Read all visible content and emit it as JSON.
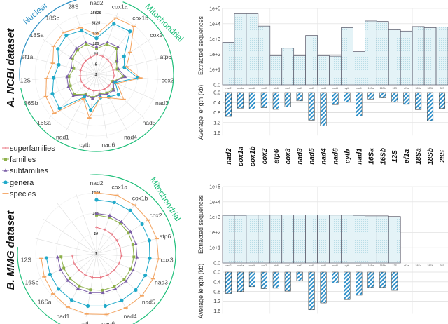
{
  "legend": [
    {
      "name": "superfamilies",
      "color": "#e8737f",
      "marker": "plus"
    },
    {
      "name": "families",
      "color": "#8db04a",
      "marker": "square"
    },
    {
      "name": "subfamilies",
      "color": "#7b5ea7",
      "marker": "triangle"
    },
    {
      "name": "genera",
      "color": "#1fa9c9",
      "marker": "circle"
    },
    {
      "name": "species",
      "color": "#f4a460",
      "marker": "dash"
    }
  ],
  "panels": [
    {
      "title": "A.   NCBI dataset",
      "nuclear_label": "Nuclear",
      "mito_label": "Mitochondrial",
      "nuclear_color": "#2a8fc4",
      "mito_color": "#1fbf7a"
    },
    {
      "title": "B.   MMG dataset",
      "mito_label": "Mitochondrial",
      "mito_color": "#1fbf7a"
    }
  ],
  "chart_data": [
    {
      "type": "radar",
      "scale": "log",
      "log_base": 5,
      "axes": [
        "nad2",
        "cox1a",
        "cox1b",
        "cox2",
        "atp6",
        "cox3",
        "nad3",
        "nad5",
        "nad4",
        "nad6",
        "cytb",
        "nad1",
        "16Sa",
        "16Sb",
        "12S",
        "ef1a",
        "18Sa",
        "18Sb",
        "28S"
      ],
      "ticks": [
        "1",
        "5",
        "25",
        "125",
        "625",
        "3125",
        "15625"
      ],
      "range": [
        1,
        15625
      ],
      "series": [
        {
          "name": "superfamilies",
          "values": [
            22,
            20,
            18,
            16,
            15,
            16,
            15,
            14,
            14,
            13,
            14,
            13,
            14,
            14,
            13,
            13,
            14,
            15,
            17
          ]
        },
        {
          "name": "families",
          "values": [
            56,
            147,
            172,
            40,
            28,
            66,
            16,
            34,
            28,
            22,
            40,
            34,
            106,
            90,
            77,
            40,
            90,
            125,
            147
          ]
        },
        {
          "name": "subfamilies",
          "values": [
            77,
            202,
            237,
            47,
            34,
            90,
            18,
            40,
            34,
            25,
            47,
            40,
            147,
            125,
            106,
            56,
            125,
            172,
            202
          ]
        },
        {
          "name": "genera",
          "values": [
            280,
            4300,
            5000,
            172,
            90,
            625,
            25,
            106,
            56,
            40,
            280,
            56,
            2650,
            1900,
            860,
            450,
            1400,
            2250,
            1400
          ]
        },
        {
          "name": "species",
          "values": [
            530,
            11300,
            13300,
            530,
            125,
            1000,
            34,
            327,
            66,
            40,
            1000,
            77,
            8200,
            5900,
            2650,
            1180,
            3125,
            4300,
            2250
          ]
        }
      ]
    },
    {
      "type": "radar",
      "scale": "log",
      "log_base": 10,
      "axes": [
        "nad2",
        "cox1a",
        "cox1b",
        "cox2",
        "atp6",
        "cox3",
        "nad3",
        "nad5",
        "nad4",
        "nad6",
        "cytb",
        "nad1",
        "16Sa",
        "16Sb",
        "12S",
        "",
        "",
        "",
        ""
      ],
      "ticks": [
        "1",
        "10",
        "100",
        "1000"
      ],
      "range": [
        1,
        1000
      ],
      "series": [
        {
          "name": "superfamilies",
          "values": [
            20,
            18,
            17,
            16,
            16,
            17,
            16,
            15,
            15,
            15,
            15,
            15,
            15,
            16,
            16
          ]
        },
        {
          "name": "families",
          "values": [
            80,
            80,
            80,
            75,
            70,
            70,
            70,
            70,
            68,
            65,
            62,
            62,
            60,
            58,
            57
          ]
        },
        {
          "name": "subfamilies",
          "values": [
            96,
            100,
            100,
            100,
            100,
            100,
            95,
            95,
            90,
            85,
            85,
            85,
            85,
            85,
            84
          ]
        },
        {
          "name": "genera",
          "values": [
            450,
            480,
            500,
            480,
            480,
            425,
            420,
            420,
            400,
            400,
            400,
            380,
            350,
            320,
            300
          ]
        },
        {
          "name": "species",
          "values": [
            1000,
            1100,
            1100,
            1100,
            1150,
            1150,
            1100,
            1100,
            1050,
            1050,
            1000,
            950,
            800,
            650,
            540
          ]
        }
      ]
    },
    {
      "type": "bar",
      "dataset": "NCBI",
      "categories": [
        "nad2",
        "cox1a",
        "cox1b",
        "cox2",
        "atp6",
        "cox3",
        "nad3",
        "nad5",
        "nad4",
        "nad6",
        "cytb",
        "nad1",
        "16Sa",
        "16Sb",
        "12S",
        "ef1a",
        "18Sa",
        "18Sb",
        "28S"
      ],
      "gene_labels": [
        "nad2",
        "cox1a",
        "cox1b",
        "cox2",
        "atp6",
        "cox3",
        "nad3",
        "nad5",
        "nad4",
        "nad6",
        "cytb",
        "nad1",
        "16Sa",
        "16Sb",
        "12S",
        "ef1a",
        "18Sa",
        "18Sb",
        "28S"
      ],
      "top": {
        "ylabel": "Extracted sequences",
        "scale": "log",
        "ticks": [
          "1e+5",
          "1e+4",
          "1e+3",
          "1e+2",
          "1e+1",
          "0.0"
        ],
        "values": [
          600,
          45000,
          45000,
          7000,
          80,
          250,
          80,
          1700,
          80,
          75,
          5500,
          150,
          15000,
          14000,
          4000,
          3300,
          6500,
          5500,
          6000
        ]
      },
      "bottom": {
        "ylabel": "Average length (kb)",
        "ticks": [
          "0.0",
          "0.4",
          "0.8",
          "1.2",
          "1.6"
        ],
        "ylim": [
          0,
          1.6
        ],
        "values": [
          0.95,
          0.62,
          0.65,
          0.6,
          0.67,
          0.57,
          0.33,
          1.1,
          1.33,
          0.48,
          0.38,
          0.94,
          0.26,
          0.21,
          0.37,
          0.47,
          0.68,
          1.12,
          0.63
        ]
      }
    },
    {
      "type": "bar",
      "dataset": "MMG",
      "categories": [
        "nad2",
        "cox1a",
        "cox1b",
        "cox2",
        "atp6",
        "cox3",
        "nad3",
        "nad5",
        "nad4",
        "nad6",
        "cytb",
        "nad1",
        "16Sa",
        "16Sb",
        "12S",
        "ef1a",
        "18Sa",
        "18Sb",
        "28S"
      ],
      "top": {
        "ylabel": "Extracted sequences",
        "scale": "log",
        "ticks": [
          "1e+5",
          "1e+4",
          "1e+3",
          "1e+2",
          "1e+1",
          "0.0"
        ],
        "values": [
          1300,
          1300,
          1350,
          1350,
          1350,
          1400,
          1400,
          1400,
          1400,
          1350,
          1350,
          1300,
          1200,
          1200,
          1100,
          null,
          null,
          null,
          null
        ]
      },
      "bottom": {
        "ylabel": "Average length (kb)",
        "ticks": [
          "0.0",
          "0.4",
          "0.8",
          "1.2",
          "1.6"
        ],
        "ylim": [
          0,
          1.6
        ],
        "values": [
          0.88,
          0.8,
          0.6,
          0.68,
          0.66,
          0.78,
          0.35,
          1.55,
          1.27,
          0.45,
          1.13,
          0.95,
          0.63,
          0.63,
          0.75,
          null,
          null,
          null,
          null
        ]
      }
    }
  ]
}
